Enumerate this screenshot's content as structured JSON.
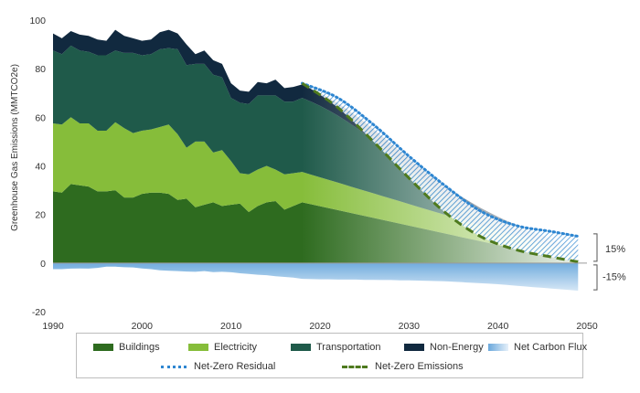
{
  "chart_data": {
    "type": "area",
    "title": "",
    "xlabel": "",
    "ylabel": "Greenhouse Gas Emissions (MMTCO2e)",
    "xlim": [
      1990,
      2050
    ],
    "ylim": [
      -20,
      100
    ],
    "x_ticks": [
      "1990",
      "2000",
      "2010",
      "2020",
      "2030",
      "2040",
      "2050"
    ],
    "y_ticks": [
      "-20",
      "0",
      "20",
      "40",
      "60",
      "80",
      "100"
    ],
    "grid": false,
    "legend_position": "bottom",
    "x": [
      1990,
      1991,
      1992,
      1993,
      1994,
      1995,
      1996,
      1997,
      1998,
      1999,
      2000,
      2001,
      2002,
      2003,
      2004,
      2005,
      2006,
      2007,
      2008,
      2009,
      2010,
      2011,
      2012,
      2013,
      2014,
      2015,
      2016,
      2017,
      2018,
      2019,
      2020,
      2021,
      2022,
      2023,
      2024,
      2025,
      2026,
      2027,
      2028,
      2029,
      2030,
      2031,
      2032,
      2033,
      2034,
      2035,
      2036,
      2037,
      2038,
      2039,
      2040,
      2041,
      2042,
      2043,
      2044,
      2045,
      2046,
      2047,
      2048,
      2049
    ],
    "series": [
      {
        "name": "Buildings",
        "color": "#2e6b1f",
        "values": [
          29.5,
          29,
          32.5,
          32,
          31.5,
          29.5,
          29.5,
          30,
          27,
          27,
          28.5,
          29,
          29,
          28.5,
          26,
          26.5,
          23,
          24,
          25,
          23.5,
          24,
          24.5,
          21,
          23.5,
          25,
          25.5,
          22,
          23.5,
          25,
          24.2,
          23.4,
          22.6,
          21.8,
          21,
          20.2,
          19.4,
          18.6,
          17.8,
          17,
          16.2,
          15.4,
          14.6,
          13.8,
          13,
          12.2,
          11.4,
          10.6,
          9.8,
          9,
          8.2,
          7.4,
          6.6,
          5.8,
          5,
          4.2,
          3.4,
          2.6,
          1.8,
          1,
          0.2
        ]
      },
      {
        "name": "Electricity",
        "color": "#86bd3a",
        "values": [
          28,
          28,
          27.5,
          25.5,
          26,
          25,
          25,
          28,
          28.5,
          26.5,
          26,
          26,
          27,
          28.5,
          27,
          21,
          27,
          26,
          20.5,
          23,
          18,
          12.5,
          15.5,
          15,
          15,
          13,
          14.5,
          13.5,
          12.5,
          12.2,
          11.9,
          11.6,
          11.3,
          11,
          10.7,
          10.4,
          10.1,
          9.8,
          9.5,
          9.2,
          8.9,
          8.6,
          8.3,
          8,
          7.7,
          7.4,
          7.1,
          6.8,
          6.5,
          6.2,
          5.9,
          5.6,
          5.3,
          5,
          4.7,
          4.4,
          4.1,
          3.8,
          3.5,
          3.2
        ]
      },
      {
        "name": "Transportation",
        "color": "#1f5a4a",
        "values": [
          30,
          29,
          29.5,
          30,
          29.5,
          31,
          31,
          29.5,
          31,
          33,
          31,
          31,
          32,
          31.5,
          35,
          34,
          32,
          32,
          32,
          30,
          26,
          29,
          29,
          30.5,
          29,
          30.5,
          30,
          29.5,
          30.5,
          30,
          29.4,
          28.6,
          27.6,
          26.4,
          25,
          23.5,
          21.8,
          20,
          18.2,
          16.3,
          14.5,
          12.7,
          11,
          9.5,
          8.1,
          6.8,
          5.7,
          4.7,
          3.8,
          3.1,
          2.5,
          2,
          1.6,
          1.3,
          1,
          0.8,
          0.6,
          0.4,
          0.2,
          0.1
        ]
      },
      {
        "name": "Non-Energy",
        "color": "#11293f",
        "values": [
          7,
          6.5,
          6,
          6.5,
          6.5,
          6.5,
          6,
          8.5,
          7,
          6,
          6,
          6,
          7,
          7.5,
          6.5,
          8.5,
          4,
          5.5,
          6,
          5.5,
          6,
          5,
          5,
          5.5,
          5,
          6.5,
          5.5,
          6,
          5.5,
          5.4,
          5.3,
          5.2,
          5.1,
          5,
          4.9,
          4.8,
          4.7,
          4.6,
          4.5,
          4.4,
          4.3,
          4.2,
          4.1,
          4,
          3.9,
          3.8,
          3.7,
          3.6,
          3.5,
          3.4,
          3.3,
          3.2,
          3.1,
          3,
          2.9,
          2.8,
          2.7,
          2.6,
          2.5,
          2.4
        ]
      },
      {
        "name": "Net Carbon Flux",
        "color": "#6aa8dc",
        "values": [
          -2.5,
          -2.5,
          -2.3,
          -2.2,
          -2.3,
          -2,
          -1.5,
          -1.5,
          -1.7,
          -1.8,
          -2.2,
          -2.5,
          -3,
          -3.2,
          -3.3,
          -3.5,
          -3.6,
          -3.3,
          -3.7,
          -3.6,
          -3.8,
          -4.2,
          -4.5,
          -4.8,
          -5,
          -5.4,
          -5.7,
          -6,
          -6.5,
          -6.6,
          -6.7,
          -6.7,
          -6.8,
          -6.8,
          -6.8,
          -6.9,
          -6.9,
          -7,
          -7,
          -7.1,
          -7.1,
          -7.2,
          -7.3,
          -7.4,
          -7.5,
          -7.7,
          -7.9,
          -8.1,
          -8.3,
          -8.5,
          -8.7,
          -9,
          -9.3,
          -9.6,
          -9.9,
          -10.2,
          -10.5,
          -10.8,
          -11.1,
          -11.4
        ]
      }
    ],
    "reference_lines": [
      {
        "name": "Net-Zero Residual",
        "style": "dotted",
        "color": "#2e86d1",
        "x": [
          2018,
          2022,
          2026,
          2030,
          2034,
          2038,
          2042,
          2046,
          2049
        ],
        "values": [
          74,
          68,
          57,
          44,
          32,
          21.5,
          15.5,
          13,
          11
        ]
      },
      {
        "name": "Net-Zero Emissions",
        "style": "dashed",
        "color": "#4e7a1e",
        "x": [
          2018,
          2022,
          2026,
          2030,
          2034,
          2038,
          2042,
          2046,
          2049
        ],
        "values": [
          74,
          64,
          50,
          35,
          21,
          11,
          5.5,
          2.5,
          0.5
        ]
      }
    ],
    "annotations": [
      "15%",
      "-15%"
    ],
    "legend": [
      "Buildings",
      "Electricity",
      "Transportation",
      "Non-Energy",
      "Net Carbon Flux",
      "Net-Zero Residual",
      "Net-Zero Emissions"
    ]
  }
}
